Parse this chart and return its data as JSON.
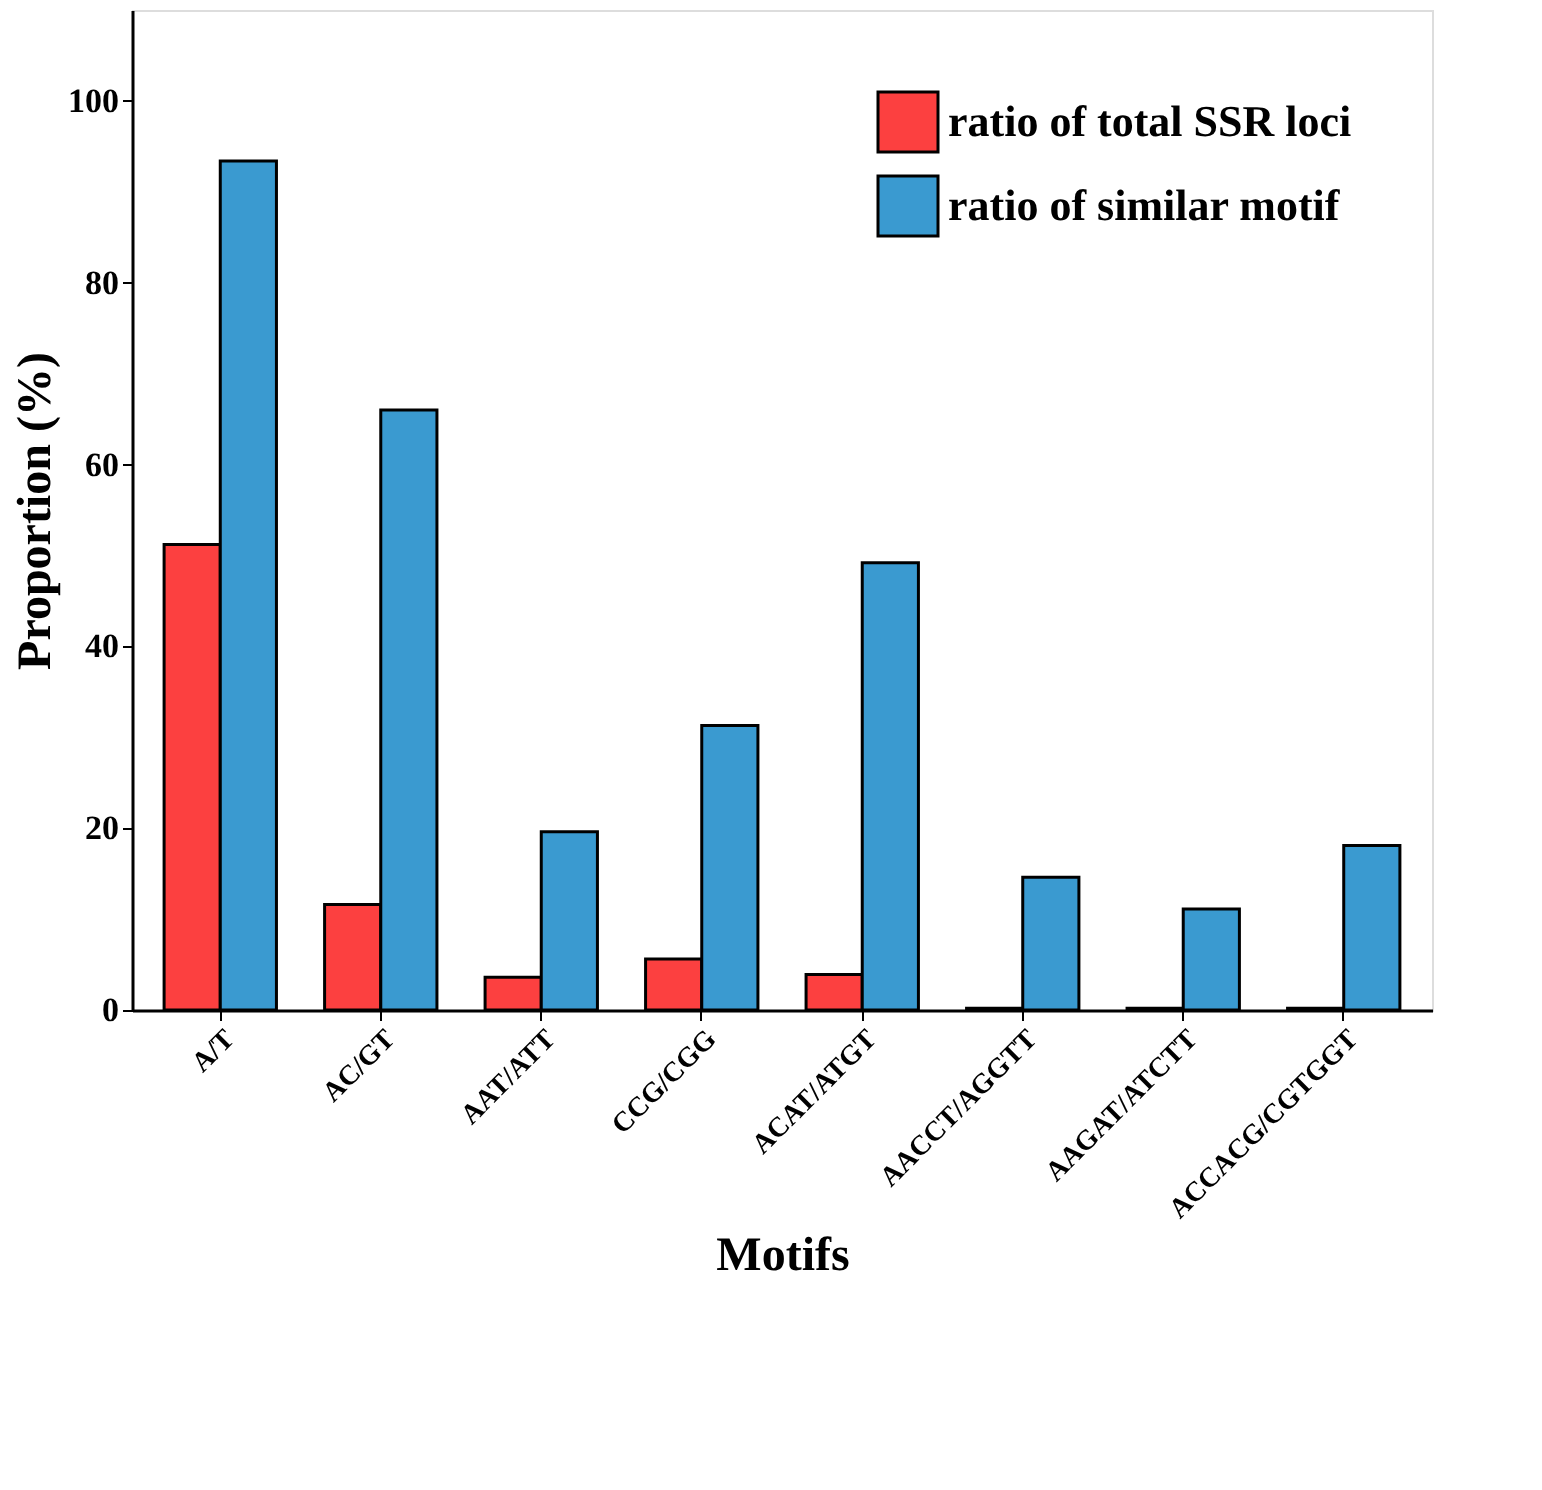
{
  "chart_data": {
    "type": "bar",
    "xlabel": "Motifs",
    "ylabel": "Proportion (%)",
    "categories": [
      "A/T",
      "AC/GT",
      "AAT/ATT",
      "CCG/CGG",
      "ACAT/ATGT",
      "AACCT/AGGTT",
      "AAGAT/ATCTT",
      "ACCACG/CGTGGT"
    ],
    "series": [
      {
        "name": "ratio of total SSR loci",
        "color": "#fc4040",
        "values": [
          51.2,
          11.6,
          3.6,
          5.6,
          3.9,
          0.2,
          0.2,
          0.2
        ]
      },
      {
        "name": "ratio of similar motif",
        "color": "#3a9ad0",
        "values": [
          93.4,
          66.0,
          19.6,
          31.3,
          49.2,
          14.6,
          11.1,
          18.1
        ]
      }
    ],
    "ylim": [
      0,
      110
    ],
    "yticks": [
      0,
      20,
      40,
      60,
      80,
      100
    ],
    "grid": false,
    "legend": "top right"
  }
}
